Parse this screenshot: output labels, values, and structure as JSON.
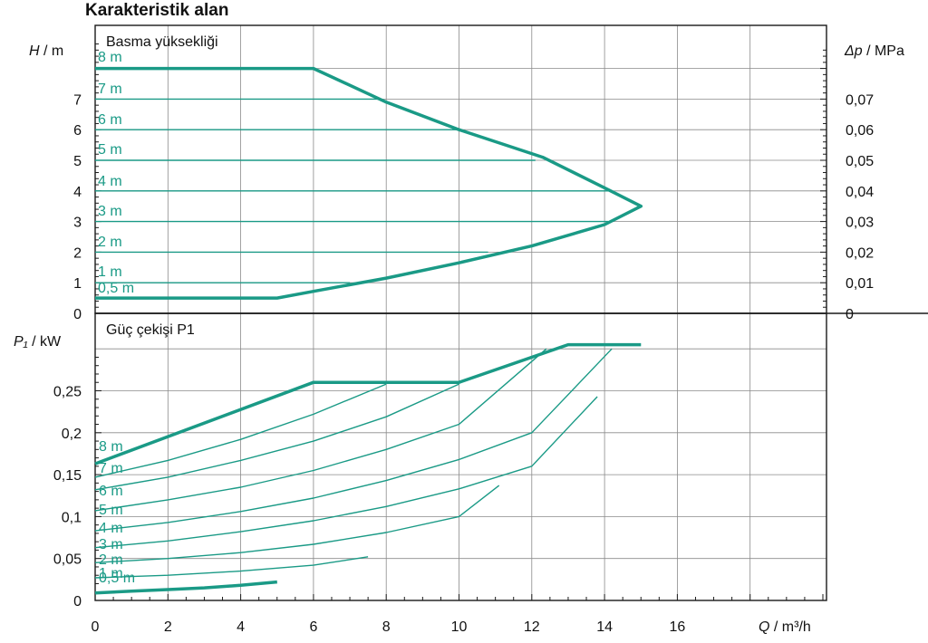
{
  "page_title": "Karakteristik alan",
  "colors": {
    "curve": "#1a9a86",
    "axis": "#1a1a1a",
    "grid": "#8a8a8a"
  },
  "chart_data": [
    {
      "type": "line",
      "title": "Basma yüksekliği",
      "ylabel_var": "H",
      "ylabel_unit": "m",
      "y2label_var": "Δp",
      "y2label_unit": "MPa",
      "xlim": [
        0,
        20
      ],
      "ylim": [
        0,
        9.2
      ],
      "y2lim": [
        0,
        0.092
      ],
      "y_ticks": [
        0,
        1,
        2,
        3,
        4,
        5,
        6,
        7
      ],
      "y_tick_labels": [
        "0",
        "1",
        "2",
        "3",
        "4",
        "5",
        "6",
        "7"
      ],
      "y2_ticks": [
        0,
        0.01,
        0.02,
        0.03,
        0.04,
        0.05,
        0.06,
        0.07
      ],
      "y2_tick_labels": [
        "0",
        "0,01",
        "0,02",
        "0,03",
        "0,04",
        "0,05",
        "0,06",
        "0,07"
      ],
      "grid": true,
      "envelope": {
        "x": [
          0,
          6,
          8,
          10,
          12.3,
          14,
          15,
          14,
          12,
          10,
          8,
          6,
          5,
          0
        ],
        "y": [
          8,
          8,
          6.9,
          6,
          5.1,
          4.1,
          3.5,
          2.9,
          2.2,
          1.65,
          1.15,
          0.72,
          0.5,
          0.5
        ]
      },
      "series": [
        {
          "name": "8 m",
          "x": [
            0,
            6
          ],
          "y": [
            8,
            8
          ]
        },
        {
          "name": "7 m",
          "x": [
            0,
            7.8
          ],
          "y": [
            7,
            7
          ]
        },
        {
          "name": "6 m",
          "x": [
            0,
            10
          ],
          "y": [
            6,
            6
          ]
        },
        {
          "name": "5 m",
          "x": [
            0,
            12.1
          ],
          "y": [
            5,
            5
          ]
        },
        {
          "name": "4 m",
          "x": [
            0,
            14.2
          ],
          "y": [
            4,
            4
          ]
        },
        {
          "name": "3 m",
          "x": [
            0,
            14.1
          ],
          "y": [
            3,
            3
          ]
        },
        {
          "name": "2 m",
          "x": [
            0,
            10.8
          ],
          "y": [
            2,
            2
          ]
        },
        {
          "name": "1 m",
          "x": [
            0,
            7
          ],
          "y": [
            1,
            1
          ]
        },
        {
          "name": "0,5 m",
          "x": [
            0,
            5
          ],
          "y": [
            0.5,
            0.5
          ]
        }
      ]
    },
    {
      "type": "line",
      "title": "Güç çekişi P1",
      "ylabel_var": "P₁",
      "ylabel_unit": "kW",
      "xlabel_var": "Q",
      "xlabel_unit": "m³/h",
      "xlim": [
        0,
        20
      ],
      "ylim": [
        0,
        0.32
      ],
      "x_ticks": [
        0,
        2,
        4,
        6,
        8,
        10,
        12,
        14,
        16
      ],
      "x_tick_labels": [
        "0",
        "2",
        "4",
        "6",
        "8",
        "10",
        "12",
        "14",
        "16"
      ],
      "y_ticks": [
        0,
        0.05,
        0.1,
        0.15,
        0.2,
        0.25
      ],
      "y_tick_labels": [
        "0",
        "0,05",
        "0,1",
        "0,15",
        "0,2",
        "0,25"
      ],
      "grid": true,
      "envelope": {
        "x": [
          0,
          0.5,
          1,
          2,
          3,
          4,
          5,
          6,
          10,
          13,
          15
        ],
        "y": [
          0.163,
          0.168,
          0.175,
          0.193,
          0.215,
          0.237,
          0.258,
          0.26,
          0.26,
          0.305,
          0.305
        ]
      },
      "series": [
        {
          "name": "8 m",
          "x": [
            0,
            6,
            10,
            13,
            15
          ],
          "y": [
            0.163,
            0.26,
            0.26,
            0.305,
            0.305
          ]
        },
        {
          "name": "7 m",
          "x": [
            0,
            2,
            4,
            6,
            8.0
          ],
          "y": [
            0.147,
            0.167,
            0.192,
            0.222,
            0.258
          ]
        },
        {
          "name": "6 m",
          "x": [
            0,
            2,
            4,
            6,
            8,
            10.0
          ],
          "y": [
            0.132,
            0.147,
            0.167,
            0.19,
            0.219,
            0.258
          ]
        },
        {
          "name": "5 m",
          "x": [
            0,
            2,
            4,
            6,
            8,
            10,
            12.4
          ],
          "y": [
            0.107,
            0.12,
            0.135,
            0.155,
            0.18,
            0.21,
            0.3
          ]
        },
        {
          "name": "4 m",
          "x": [
            0,
            2,
            4,
            6,
            8,
            10,
            12,
            14.2
          ],
          "y": [
            0.083,
            0.093,
            0.106,
            0.122,
            0.143,
            0.168,
            0.2,
            0.3
          ]
        },
        {
          "name": "3 m",
          "x": [
            0,
            2,
            4,
            6,
            8,
            10,
            12,
            13.8
          ],
          "y": [
            0.063,
            0.071,
            0.082,
            0.095,
            0.112,
            0.133,
            0.16,
            0.243
          ]
        },
        {
          "name": "2 m",
          "x": [
            0,
            2,
            4,
            6,
            8,
            10,
            11.1
          ],
          "y": [
            0.045,
            0.05,
            0.057,
            0.067,
            0.081,
            0.1,
            0.137
          ]
        },
        {
          "name": "1 m",
          "x": [
            0,
            2,
            4,
            6,
            7.5
          ],
          "y": [
            0.027,
            0.03,
            0.035,
            0.042,
            0.052
          ]
        },
        {
          "name": "0,5 m",
          "x": [
            0,
            1,
            2,
            3,
            4,
            5
          ],
          "y": [
            0.009,
            0.011,
            0.013,
            0.015,
            0.018,
            0.022
          ]
        }
      ]
    }
  ]
}
